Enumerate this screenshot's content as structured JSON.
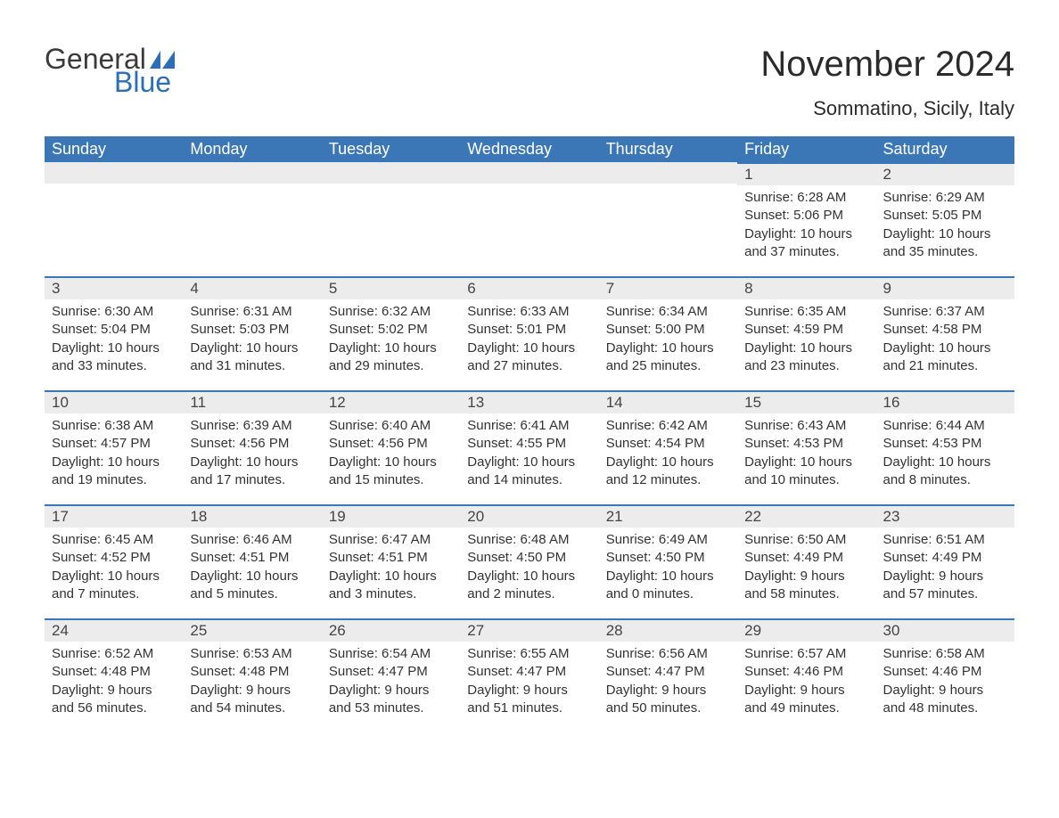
{
  "brand": {
    "word1": "General",
    "word2": "Blue",
    "color_text": "#3a3a3a",
    "color_blue": "#2d6fb6"
  },
  "title": "November 2024",
  "location": "Sommatino, Sicily, Italy",
  "colors": {
    "header_bg": "#3b77b7",
    "header_fg": "#ffffff",
    "daynum_bg": "#ececec",
    "rule": "#3b77b7",
    "body_text": "#333333",
    "page_bg": "#ffffff"
  },
  "weekdays": [
    "Sunday",
    "Monday",
    "Tuesday",
    "Wednesday",
    "Thursday",
    "Friday",
    "Saturday"
  ],
  "weeks": [
    [
      null,
      null,
      null,
      null,
      null,
      {
        "n": "1",
        "sunrise": "Sunrise: 6:28 AM",
        "sunset": "Sunset: 5:06 PM",
        "daylight": "Daylight: 10 hours and 37 minutes."
      },
      {
        "n": "2",
        "sunrise": "Sunrise: 6:29 AM",
        "sunset": "Sunset: 5:05 PM",
        "daylight": "Daylight: 10 hours and 35 minutes."
      }
    ],
    [
      {
        "n": "3",
        "sunrise": "Sunrise: 6:30 AM",
        "sunset": "Sunset: 5:04 PM",
        "daylight": "Daylight: 10 hours and 33 minutes."
      },
      {
        "n": "4",
        "sunrise": "Sunrise: 6:31 AM",
        "sunset": "Sunset: 5:03 PM",
        "daylight": "Daylight: 10 hours and 31 minutes."
      },
      {
        "n": "5",
        "sunrise": "Sunrise: 6:32 AM",
        "sunset": "Sunset: 5:02 PM",
        "daylight": "Daylight: 10 hours and 29 minutes."
      },
      {
        "n": "6",
        "sunrise": "Sunrise: 6:33 AM",
        "sunset": "Sunset: 5:01 PM",
        "daylight": "Daylight: 10 hours and 27 minutes."
      },
      {
        "n": "7",
        "sunrise": "Sunrise: 6:34 AM",
        "sunset": "Sunset: 5:00 PM",
        "daylight": "Daylight: 10 hours and 25 minutes."
      },
      {
        "n": "8",
        "sunrise": "Sunrise: 6:35 AM",
        "sunset": "Sunset: 4:59 PM",
        "daylight": "Daylight: 10 hours and 23 minutes."
      },
      {
        "n": "9",
        "sunrise": "Sunrise: 6:37 AM",
        "sunset": "Sunset: 4:58 PM",
        "daylight": "Daylight: 10 hours and 21 minutes."
      }
    ],
    [
      {
        "n": "10",
        "sunrise": "Sunrise: 6:38 AM",
        "sunset": "Sunset: 4:57 PM",
        "daylight": "Daylight: 10 hours and 19 minutes."
      },
      {
        "n": "11",
        "sunrise": "Sunrise: 6:39 AM",
        "sunset": "Sunset: 4:56 PM",
        "daylight": "Daylight: 10 hours and 17 minutes."
      },
      {
        "n": "12",
        "sunrise": "Sunrise: 6:40 AM",
        "sunset": "Sunset: 4:56 PM",
        "daylight": "Daylight: 10 hours and 15 minutes."
      },
      {
        "n": "13",
        "sunrise": "Sunrise: 6:41 AM",
        "sunset": "Sunset: 4:55 PM",
        "daylight": "Daylight: 10 hours and 14 minutes."
      },
      {
        "n": "14",
        "sunrise": "Sunrise: 6:42 AM",
        "sunset": "Sunset: 4:54 PM",
        "daylight": "Daylight: 10 hours and 12 minutes."
      },
      {
        "n": "15",
        "sunrise": "Sunrise: 6:43 AM",
        "sunset": "Sunset: 4:53 PM",
        "daylight": "Daylight: 10 hours and 10 minutes."
      },
      {
        "n": "16",
        "sunrise": "Sunrise: 6:44 AM",
        "sunset": "Sunset: 4:53 PM",
        "daylight": "Daylight: 10 hours and 8 minutes."
      }
    ],
    [
      {
        "n": "17",
        "sunrise": "Sunrise: 6:45 AM",
        "sunset": "Sunset: 4:52 PM",
        "daylight": "Daylight: 10 hours and 7 minutes."
      },
      {
        "n": "18",
        "sunrise": "Sunrise: 6:46 AM",
        "sunset": "Sunset: 4:51 PM",
        "daylight": "Daylight: 10 hours and 5 minutes."
      },
      {
        "n": "19",
        "sunrise": "Sunrise: 6:47 AM",
        "sunset": "Sunset: 4:51 PM",
        "daylight": "Daylight: 10 hours and 3 minutes."
      },
      {
        "n": "20",
        "sunrise": "Sunrise: 6:48 AM",
        "sunset": "Sunset: 4:50 PM",
        "daylight": "Daylight: 10 hours and 2 minutes."
      },
      {
        "n": "21",
        "sunrise": "Sunrise: 6:49 AM",
        "sunset": "Sunset: 4:50 PM",
        "daylight": "Daylight: 10 hours and 0 minutes."
      },
      {
        "n": "22",
        "sunrise": "Sunrise: 6:50 AM",
        "sunset": "Sunset: 4:49 PM",
        "daylight": "Daylight: 9 hours and 58 minutes."
      },
      {
        "n": "23",
        "sunrise": "Sunrise: 6:51 AM",
        "sunset": "Sunset: 4:49 PM",
        "daylight": "Daylight: 9 hours and 57 minutes."
      }
    ],
    [
      {
        "n": "24",
        "sunrise": "Sunrise: 6:52 AM",
        "sunset": "Sunset: 4:48 PM",
        "daylight": "Daylight: 9 hours and 56 minutes."
      },
      {
        "n": "25",
        "sunrise": "Sunrise: 6:53 AM",
        "sunset": "Sunset: 4:48 PM",
        "daylight": "Daylight: 9 hours and 54 minutes."
      },
      {
        "n": "26",
        "sunrise": "Sunrise: 6:54 AM",
        "sunset": "Sunset: 4:47 PM",
        "daylight": "Daylight: 9 hours and 53 minutes."
      },
      {
        "n": "27",
        "sunrise": "Sunrise: 6:55 AM",
        "sunset": "Sunset: 4:47 PM",
        "daylight": "Daylight: 9 hours and 51 minutes."
      },
      {
        "n": "28",
        "sunrise": "Sunrise: 6:56 AM",
        "sunset": "Sunset: 4:47 PM",
        "daylight": "Daylight: 9 hours and 50 minutes."
      },
      {
        "n": "29",
        "sunrise": "Sunrise: 6:57 AM",
        "sunset": "Sunset: 4:46 PM",
        "daylight": "Daylight: 9 hours and 49 minutes."
      },
      {
        "n": "30",
        "sunrise": "Sunrise: 6:58 AM",
        "sunset": "Sunset: 4:46 PM",
        "daylight": "Daylight: 9 hours and 48 minutes."
      }
    ]
  ]
}
